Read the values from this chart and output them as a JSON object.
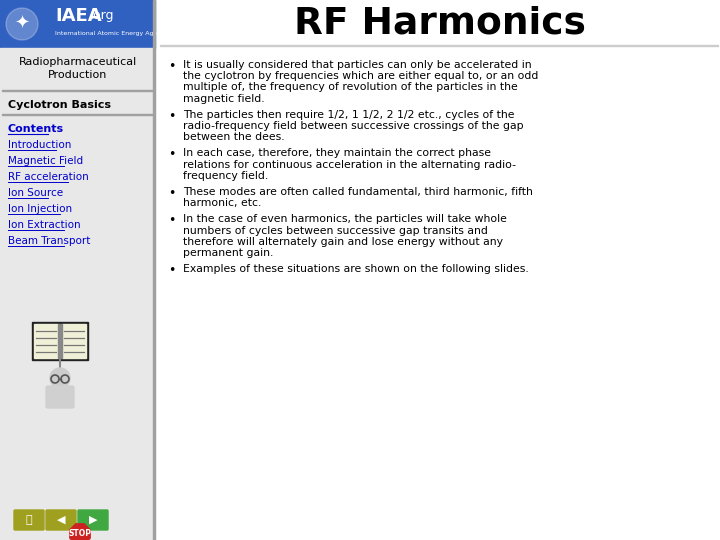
{
  "title": "RF Harmonics",
  "sidebar_section": "Cyclotron Basics",
  "sidebar_links_bold": "Contents",
  "sidebar_links": [
    "Introduction",
    "Magnetic Field",
    "RF acceleration",
    "Ion Source",
    "Ion Injection",
    "Ion Extraction",
    "Beam Transport"
  ],
  "bullet_points": [
    "It is usually considered that particles can only be accelerated in\nthe cyclotron by frequencies which are either equal to, or an odd\nmultiple of, the frequency of revolution of the particles in the\nmagnetic field.",
    "The particles then require 1/2, 1 1/2, 2 1/2 etc., cycles of the\nradio-frequency field between successive crossings of the gap\nbetween the dees.",
    "In each case, therefore, they maintain the correct phase\nrelations for continuous acceleration in the alternating radio-\nfrequency field.",
    "These modes are often called fundamental, third harmonic, fifth\nharmonic, etc.",
    "In the case of even harmonics, the particles will take whole\nnumbers of cycles between successive gap transits and\ntherefore will alternately gain and lose energy without any\npermanent gain.",
    "Examples of these situations are shown on the following slides."
  ],
  "header_bg": "#3060c0",
  "sidebar_bg": "#e8e8e8",
  "main_bg": "#ffffff",
  "link_color": "#0000cc",
  "text_color": "#000000",
  "divider_color": "#a0a0a0"
}
